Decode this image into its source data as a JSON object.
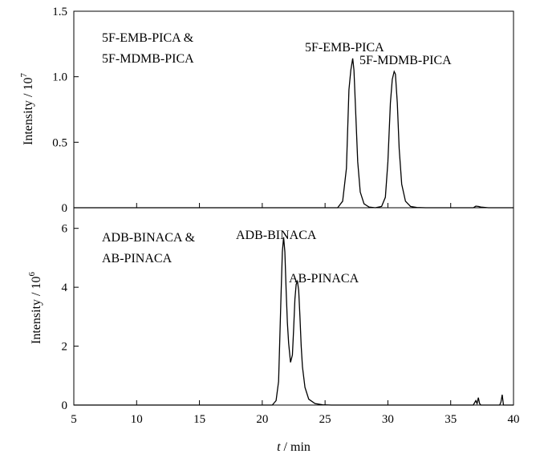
{
  "chart_data": {
    "type": "line",
    "shared_x": {
      "label_italic": "t",
      "label_rest": " / min",
      "xlim": [
        5,
        40
      ],
      "ticks": [
        5,
        10,
        15,
        20,
        25,
        30,
        35,
        40
      ]
    },
    "panels": [
      {
        "id": "top",
        "ylabel_text": "Intensity / 10",
        "ylabel_exponent": "7",
        "ylim": [
          0,
          1.5
        ],
        "yticks": [
          0,
          0.5,
          1.0,
          1.5
        ],
        "ytick_labels": [
          "0",
          "0.5",
          "1.0",
          "1.5"
        ],
        "legend_lines": [
          "5F-EMB-PICA &",
          "5F-MDMB-PICA"
        ],
        "peaks": [
          {
            "label": "5F-EMB-PICA",
            "x": 27.2,
            "y": 1.14
          },
          {
            "label": "5F-MDMB-PICA",
            "x": 30.5,
            "y": 1.04
          }
        ],
        "series": [
          {
            "x": [
              5,
              26.0,
              26.4,
              26.7,
              26.9,
              27.05,
              27.2,
              27.3,
              27.45,
              27.6,
              27.8,
              28.1,
              28.5,
              29.0,
              29.5,
              29.8,
              30.0,
              30.2,
              30.35,
              30.5,
              30.6,
              30.75,
              30.9,
              31.1,
              31.4,
              31.8,
              32.3,
              33.0,
              36.8,
              37.0,
              37.2,
              37.4,
              38,
              40
            ],
            "y": [
              0,
              0,
              0.05,
              0.3,
              0.9,
              1.05,
              1.14,
              1.05,
              0.7,
              0.35,
              0.12,
              0.03,
              0.005,
              0,
              0.01,
              0.08,
              0.35,
              0.8,
              0.98,
              1.04,
              1.02,
              0.8,
              0.45,
              0.18,
              0.05,
              0.01,
              0.002,
              0,
              0,
              0.012,
              0.01,
              0.005,
              0,
              0
            ]
          }
        ]
      },
      {
        "id": "bottom",
        "ylabel_text": "Intensity / 10",
        "ylabel_exponent": "6",
        "ylim": [
          0,
          6.7
        ],
        "yticks": [
          0,
          2,
          4,
          6
        ],
        "ytick_labels": [
          "0",
          "2",
          "4",
          "6"
        ],
        "legend_lines": [
          "ADB-BINACA &",
          "AB-PINACA"
        ],
        "peaks": [
          {
            "label": "ADB-BINACA",
            "x": 21.7,
            "y": 5.7
          },
          {
            "label": "AB-PINACA",
            "x": 22.85,
            "y": 4.2
          }
        ],
        "series": [
          {
            "x": [
              5,
              20.8,
              21.1,
              21.3,
              21.5,
              21.6,
              21.7,
              21.8,
              21.9,
              22.0,
              22.1,
              22.25,
              22.4,
              22.5,
              22.6,
              22.7,
              22.8,
              22.9,
              23.0,
              23.1,
              23.2,
              23.4,
              23.7,
              24.2,
              24.8,
              25.5,
              36.8,
              37.0,
              37.1,
              37.2,
              37.3,
              37.4,
              38.9,
              39.0,
              39.1,
              39.2,
              40
            ],
            "y": [
              0,
              0,
              0.15,
              0.8,
              3.8,
              5.2,
              5.7,
              5.2,
              3.9,
              2.8,
              2.1,
              1.45,
              1.7,
              2.6,
              3.6,
              4.1,
              4.2,
              3.9,
              3.0,
              2.0,
              1.3,
              0.6,
              0.2,
              0.05,
              0.01,
              0,
              0,
              0.15,
              0.05,
              0.25,
              0.05,
              0,
              0,
              0.1,
              0.35,
              0,
              0
            ]
          }
        ]
      }
    ]
  }
}
